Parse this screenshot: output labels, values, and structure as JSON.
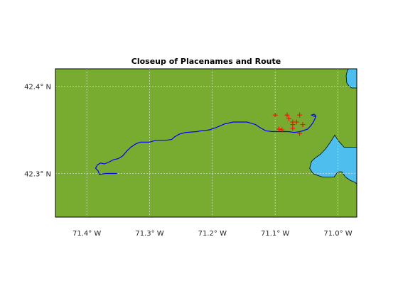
{
  "figure": {
    "title": "Closeup of Placenames and Route"
  },
  "colors": {
    "land": "#77ac30",
    "water": "#4dbeee",
    "route": "#0000ff",
    "placename_marker": "#ff0000",
    "coastline": "#000000",
    "background": "#ffffff"
  },
  "map": {
    "lon_range": [
      -71.45,
      -70.97
    ],
    "lat_range": [
      42.25,
      42.42
    ],
    "lon_ticks": [
      {
        "value": -71.4,
        "label": "71.4° W"
      },
      {
        "value": -71.3,
        "label": "71.3° W"
      },
      {
        "value": -71.2,
        "label": "71.2° W"
      },
      {
        "value": -71.1,
        "label": "71.1° W"
      },
      {
        "value": -71.0,
        "label": "71.0° W"
      }
    ],
    "lat_ticks": [
      {
        "value": 42.4,
        "label": "42.4° N"
      },
      {
        "value": 42.3,
        "label": "42.3° N"
      }
    ],
    "grid": true,
    "route_lonlat": [
      [
        -71.352,
        42.3
      ],
      [
        -71.37,
        42.3
      ],
      [
        -71.38,
        42.299
      ],
      [
        -71.382,
        42.303
      ],
      [
        -71.386,
        42.306
      ],
      [
        -71.383,
        42.31
      ],
      [
        -71.378,
        42.312
      ],
      [
        -71.372,
        42.311
      ],
      [
        -71.365,
        42.313
      ],
      [
        -71.357,
        42.316
      ],
      [
        -71.35,
        42.317
      ],
      [
        -71.343,
        42.32
      ],
      [
        -71.336,
        42.326
      ],
      [
        -71.33,
        42.33
      ],
      [
        -71.322,
        42.334
      ],
      [
        -71.315,
        42.336
      ],
      [
        -71.3,
        42.336
      ],
      [
        -71.29,
        42.338
      ],
      [
        -71.275,
        42.338
      ],
      [
        -71.265,
        42.339
      ],
      [
        -71.26,
        42.342
      ],
      [
        -71.253,
        42.345
      ],
      [
        -71.243,
        42.347
      ],
      [
        -71.225,
        42.348
      ],
      [
        -71.218,
        42.349
      ],
      [
        -71.205,
        42.35
      ],
      [
        -71.193,
        42.353
      ],
      [
        -71.18,
        42.357
      ],
      [
        -71.167,
        42.359
      ],
      [
        -71.145,
        42.359
      ],
      [
        -71.14,
        42.358
      ],
      [
        -71.131,
        42.356
      ],
      [
        -71.125,
        42.353
      ],
      [
        -71.115,
        42.349
      ],
      [
        -71.105,
        42.348
      ],
      [
        -71.09,
        42.348
      ],
      [
        -71.079,
        42.348
      ],
      [
        -71.07,
        42.347
      ],
      [
        -71.06,
        42.348
      ],
      [
        -71.048,
        42.351
      ],
      [
        -71.043,
        42.355
      ],
      [
        -71.04,
        42.358
      ],
      [
        -71.037,
        42.362
      ],
      [
        -71.035,
        42.366
      ],
      [
        -71.038,
        42.368
      ],
      [
        -71.042,
        42.367
      ],
      [
        -71.036,
        42.365
      ]
    ],
    "placename_points_lonlat": [
      [
        -71.1,
        42.367
      ],
      [
        -71.081,
        42.367
      ],
      [
        -71.061,
        42.367
      ],
      [
        -71.078,
        42.363
      ],
      [
        -71.072,
        42.359
      ],
      [
        -71.066,
        42.359
      ],
      [
        -71.072,
        42.356
      ],
      [
        -71.056,
        42.356
      ],
      [
        -71.072,
        42.352
      ],
      [
        -71.094,
        42.351
      ],
      [
        -71.089,
        42.35
      ],
      [
        -71.061,
        42.346
      ]
    ],
    "water_lonlat": [
      [
        -70.97,
        42.33
      ],
      [
        -70.99,
        42.33
      ],
      [
        -71.0,
        42.338
      ],
      [
        -71.005,
        42.344
      ],
      [
        -71.012,
        42.336
      ],
      [
        -71.02,
        42.328
      ],
      [
        -71.028,
        42.322
      ],
      [
        -71.036,
        42.318
      ],
      [
        -71.042,
        42.314
      ],
      [
        -71.045,
        42.306
      ],
      [
        -71.04,
        42.3
      ],
      [
        -71.033,
        42.298
      ],
      [
        -71.025,
        42.296
      ],
      [
        -71.015,
        42.296
      ],
      [
        -71.006,
        42.296
      ],
      [
        -71.0,
        42.302
      ],
      [
        -70.994,
        42.302
      ],
      [
        -70.988,
        42.296
      ],
      [
        -70.98,
        42.292
      ],
      [
        -70.973,
        42.29
      ],
      [
        -70.97,
        42.288
      ]
    ],
    "water_ne_lonlat": [
      [
        -70.983,
        42.42
      ],
      [
        -70.97,
        42.42
      ],
      [
        -70.97,
        42.398
      ],
      [
        -70.978,
        42.398
      ],
      [
        -70.982,
        42.4
      ],
      [
        -70.986,
        42.404
      ],
      [
        -70.987,
        42.412
      ],
      [
        -70.985,
        42.418
      ]
    ]
  }
}
